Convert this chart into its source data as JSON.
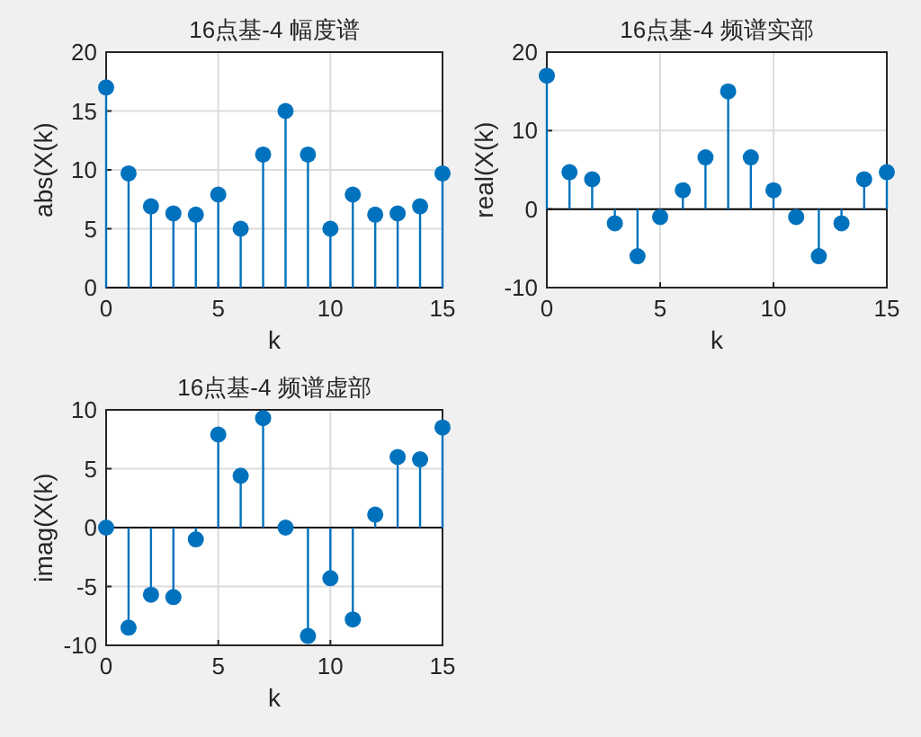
{
  "chart_data": [
    {
      "type": "lollipop",
      "title": "16点基-4  幅度谱",
      "xlabel": "k",
      "ylabel": "abs(X(k)",
      "x": [
        0,
        1,
        2,
        3,
        4,
        5,
        6,
        7,
        8,
        9,
        10,
        11,
        12,
        13,
        14,
        15
      ],
      "marker": "circle",
      "grid": true,
      "xlim": [
        0,
        15
      ],
      "xticks": [
        0,
        5,
        10,
        15
      ],
      "ylim": [
        0,
        20
      ],
      "yticks": [
        0,
        5,
        10,
        15,
        20
      ],
      "series": [
        {
          "color": "#0072bd",
          "values": [
            17,
            9.7,
            6.9,
            6.3,
            6.2,
            7.9,
            5.0,
            11.3,
            15,
            11.3,
            5.0,
            7.9,
            6.2,
            6.3,
            6.9,
            9.7
          ]
        }
      ]
    },
    {
      "type": "lollipop",
      "title": "16点基-4  频谱实部",
      "xlabel": "k",
      "ylabel": "real(X(k)",
      "x": [
        0,
        1,
        2,
        3,
        4,
        5,
        6,
        7,
        8,
        9,
        10,
        11,
        12,
        13,
        14,
        15
      ],
      "marker": "circle",
      "grid": true,
      "xlim": [
        0,
        15
      ],
      "xticks": [
        0,
        5,
        10,
        15
      ],
      "ylim": [
        -10,
        20
      ],
      "yticks": [
        -10,
        0,
        10,
        20
      ],
      "series": [
        {
          "color": "#0072bd",
          "values": [
            17,
            4.7,
            3.8,
            -1.8,
            -6.0,
            -1.0,
            2.4,
            6.6,
            15,
            6.6,
            2.4,
            -1.0,
            -6.0,
            -1.8,
            3.8,
            4.7
          ]
        }
      ]
    },
    {
      "type": "lollipop",
      "title": "16点基-4  频谱虚部",
      "xlabel": "k",
      "ylabel": "imag(X(k)",
      "x": [
        0,
        1,
        2,
        3,
        4,
        5,
        6,
        7,
        8,
        9,
        10,
        11,
        12,
        13,
        14,
        15
      ],
      "marker": "circle",
      "grid": true,
      "xlim": [
        0,
        15
      ],
      "xticks": [
        0,
        5,
        10,
        15
      ],
      "ylim": [
        -10,
        10
      ],
      "yticks": [
        -10,
        -5,
        0,
        5,
        10
      ],
      "series": [
        {
          "color": "#0072bd",
          "values": [
            0,
            -8.5,
            -5.7,
            -5.9,
            -1.0,
            7.9,
            4.4,
            9.3,
            0,
            -9.2,
            -4.3,
            -7.8,
            1.1,
            6.0,
            5.8,
            8.5
          ]
        }
      ]
    }
  ]
}
